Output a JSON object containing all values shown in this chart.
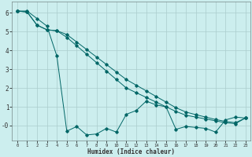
{
  "xlabel": "Humidex (Indice chaleur)",
  "ylabel": "",
  "background_color": "#cceeee",
  "grid_color": "#aacccc",
  "line_color": "#006666",
  "x_ticks": [
    0,
    1,
    2,
    3,
    4,
    5,
    6,
    7,
    8,
    9,
    10,
    11,
    12,
    13,
    14,
    15,
    16,
    17,
    18,
    19,
    20,
    21,
    22,
    23
  ],
  "y_ticks": [
    0,
    1,
    2,
    3,
    4,
    5,
    6
  ],
  "y_tick_labels": [
    "-0",
    "1",
    "2",
    "3",
    "4",
    "5",
    "6"
  ],
  "ylim": [
    -0.8,
    6.6
  ],
  "xlim": [
    -0.5,
    23.5
  ],
  "series1_x": [
    0,
    1,
    2,
    3,
    4,
    5,
    6,
    7,
    8,
    9,
    10,
    11,
    12,
    13,
    14,
    15,
    16,
    17,
    18,
    19,
    20,
    21,
    22,
    23
  ],
  "series1_y": [
    6.1,
    6.1,
    5.7,
    5.3,
    3.7,
    -0.3,
    -0.05,
    -0.5,
    -0.45,
    -0.15,
    -0.35,
    0.6,
    0.8,
    1.3,
    1.1,
    1.0,
    -0.2,
    -0.05,
    -0.1,
    -0.15,
    -0.35,
    0.3,
    0.45,
    0.4
  ],
  "series2_x": [
    0,
    1,
    2,
    3,
    4,
    5,
    6,
    7,
    8,
    9,
    10,
    11,
    12,
    13,
    14,
    15,
    16,
    17,
    18,
    19,
    20,
    21,
    22,
    23
  ],
  "series2_y": [
    6.1,
    6.05,
    5.35,
    5.1,
    5.05,
    4.7,
    4.25,
    3.8,
    3.35,
    2.9,
    2.45,
    2.0,
    1.75,
    1.5,
    1.25,
    1.0,
    0.75,
    0.55,
    0.45,
    0.35,
    0.25,
    0.15,
    0.1,
    0.4
  ],
  "series3_x": [
    0,
    1,
    2,
    3,
    4,
    5,
    6,
    7,
    8,
    9,
    10,
    11,
    12,
    13,
    14,
    15,
    16,
    17,
    18,
    19,
    20,
    21,
    22,
    23
  ],
  "series3_y": [
    6.1,
    6.05,
    5.35,
    5.1,
    5.05,
    4.85,
    4.45,
    4.05,
    3.65,
    3.25,
    2.85,
    2.45,
    2.15,
    1.85,
    1.55,
    1.25,
    0.95,
    0.72,
    0.58,
    0.45,
    0.32,
    0.22,
    0.15,
    0.4
  ]
}
